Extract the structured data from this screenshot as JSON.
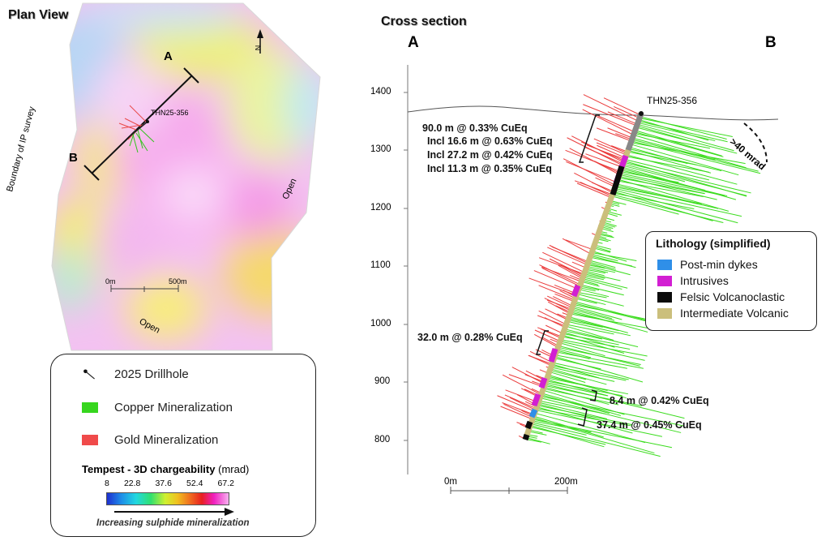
{
  "plan_view": {
    "title": "Plan View",
    "section_start": "A",
    "section_end": "B",
    "drillhole_label": "THN25-356",
    "boundary_label": "Boundary of IP survey",
    "open_right": "Open",
    "open_bottom": "Open",
    "scale_start": "0m",
    "scale_end": "500m",
    "north": "N"
  },
  "cross_section": {
    "title": "Cross section",
    "end_a": "A",
    "end_b": "B",
    "drillhole_label": "THN25-356",
    "elevation_ticks": [
      "1400",
      "1300",
      "1200",
      "1100",
      "1000",
      "900",
      "800"
    ],
    "mrad_label": ">40 mrad",
    "scale_start": "0m",
    "scale_end": "200m",
    "intercepts": {
      "main": "90.0 m @ 0.33% CuEq",
      "incl1": "Incl 16.6 m @ 0.63% CuEq",
      "incl2": "Incl 27.2 m @ 0.42% CuEq",
      "incl3": "Incl 11.3 m @ 0.35% CuEq",
      "mid": "32.0 m @ 0.28% CuEq",
      "lower1": "8.4 m @ 0.42% CuEq",
      "lower2": "37.4 m @ 0.45% CuEq"
    }
  },
  "lithology": {
    "title": "Lithology (simplified)",
    "items": [
      {
        "label": "Post-min dykes",
        "color": "#2f8fe8"
      },
      {
        "label": "Intrusives",
        "color": "#d21fd2"
      },
      {
        "label": "Felsic Volcanoclastic",
        "color": "#0b0b0b"
      },
      {
        "label": "Intermediate Volcanic",
        "color": "#cbbf7c"
      }
    ]
  },
  "legend": {
    "drillhole": "2025 Drillhole",
    "copper": "Copper Mineralization",
    "gold": "Gold Mineralization",
    "copper_color": "#36d61e",
    "gold_color": "#f04a4a",
    "scale_title": "Tempest - 3D chargeability",
    "scale_unit": "(mrad)",
    "scale_ticks": [
      "8",
      "22.8",
      "37.6",
      "52.4",
      "67.2"
    ],
    "arrow_caption": "Increasing sulphide mineralization"
  }
}
